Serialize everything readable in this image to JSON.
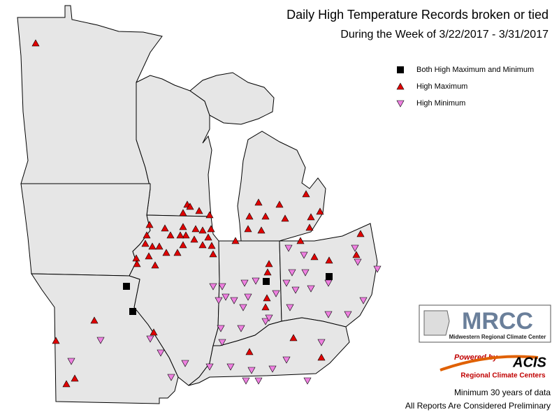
{
  "header": {
    "title": "Daily High Temperature Records broken or tied",
    "subtitle": "During the Week of 3/22/2017 - 3/31/2017"
  },
  "legend": {
    "items": [
      {
        "label": "Both High Maximum and Minimum"
      },
      {
        "label": "High Maximum"
      },
      {
        "label": "High Minimum"
      }
    ]
  },
  "logos": {
    "mrcc": {
      "name": "MRCC",
      "full_name": "Midwestern Regional Climate Center"
    },
    "acis": {
      "powered_by": "Powered by",
      "name": "ACIS",
      "subtitle": "Regional Climate Centers"
    }
  },
  "footer": {
    "notes": [
      "Minimum 30 years of data",
      "All Reports Are Considered Preliminary"
    ]
  }
}
